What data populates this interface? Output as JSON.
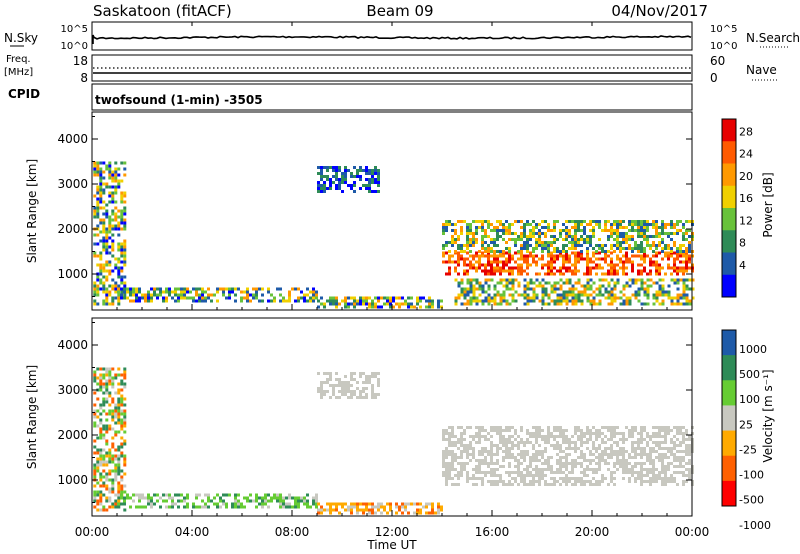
{
  "header": {
    "station": "Saskatoon (fitACF)",
    "beam": "Beam 09",
    "date": "04/Nov/2017"
  },
  "cpid": {
    "label": "CPID",
    "value": "twofsound (1-min) -3505"
  },
  "strip_nsky": {
    "left_label": "N.Sky",
    "left_ticks": [
      "10^5",
      "10^0"
    ],
    "right_ticks": [
      "10^5",
      "10^0"
    ],
    "right_label": "N.Search"
  },
  "strip_freq": {
    "left_label_1": "Freq.",
    "left_label_2": "[MHz]",
    "left_ticks": [
      "18",
      "8"
    ],
    "right_ticks": [
      "60",
      "0"
    ],
    "right_label": "Nave"
  },
  "colors": {
    "power": [
      "#0000ff",
      "#1e5aa8",
      "#2e8b57",
      "#68c23a",
      "#f0d000",
      "#ff9900",
      "#ff5a00",
      "#e60000"
    ],
    "velocity": [
      "#ff0000",
      "#ff6000",
      "#ffaa00",
      "#c8c8c0",
      "#66cc33",
      "#2e8b57",
      "#1e5aa8"
    ]
  },
  "chart_data": [
    {
      "type": "heatmap",
      "name": "Power",
      "ylabel": "Slant Range [km]",
      "yticks": [
        "4000",
        "3000",
        "2000",
        "1000"
      ],
      "ylim": [
        200,
        4600
      ],
      "xlim_hours": [
        0,
        24
      ],
      "xticks": [
        "00:00",
        "04:00",
        "08:00",
        "12:00",
        "16:00",
        "20:00",
        "00:00"
      ],
      "xlabel": "Time UT",
      "colorbar": {
        "label": "Power [dB]",
        "ticks": [
          "28",
          "24",
          "20",
          "16",
          "12",
          "8",
          "4"
        ],
        "range": [
          0,
          32
        ]
      },
      "regions": [
        {
          "t": [
            0.05,
            1.3
          ],
          "r": [
            300,
            3500
          ],
          "level": "mixed"
        },
        {
          "t": [
            1.0,
            9.0
          ],
          "r": [
            400,
            700
          ],
          "level": "mixed"
        },
        {
          "t": [
            9.0,
            14.0
          ],
          "r": [
            250,
            500
          ],
          "level": "mixed"
        },
        {
          "t": [
            9.0,
            11.5
          ],
          "r": [
            2800,
            3400
          ],
          "level": "low"
        },
        {
          "t": [
            14.0,
            24.0
          ],
          "r": [
            1000,
            1500
          ],
          "level": "high"
        },
        {
          "t": [
            14.0,
            24.0
          ],
          "r": [
            1500,
            2200
          ],
          "level": "mid"
        },
        {
          "t": [
            14.5,
            24.0
          ],
          "r": [
            300,
            900
          ],
          "level": "mid"
        }
      ]
    },
    {
      "type": "heatmap",
      "name": "Velocity",
      "ylabel": "Slant Range [km]",
      "yticks": [
        "4000",
        "3000",
        "2000",
        "1000"
      ],
      "ylim": [
        200,
        4600
      ],
      "xlim_hours": [
        0,
        24
      ],
      "xticks": [
        "00:00",
        "04:00",
        "08:00",
        "12:00",
        "16:00",
        "20:00",
        "00:00"
      ],
      "xlabel": "Time UT",
      "colorbar": {
        "label": "Velocity [m s⁻¹]",
        "ticks": [
          "1000",
          "500",
          "100",
          "25",
          "-25",
          "-100",
          "-500",
          "-1000"
        ]
      },
      "regions": [
        {
          "t": [
            0.05,
            1.3
          ],
          "r": [
            300,
            3500
          ],
          "level": "mixed"
        },
        {
          "t": [
            1.0,
            9.0
          ],
          "r": [
            400,
            700
          ],
          "level": "toward"
        },
        {
          "t": [
            9.0,
            14.0
          ],
          "r": [
            250,
            500
          ],
          "level": "away"
        },
        {
          "t": [
            14.0,
            24.0
          ],
          "r": [
            900,
            2200
          ],
          "level": "ground"
        },
        {
          "t": [
            9.0,
            11.5
          ],
          "r": [
            2800,
            3400
          ],
          "level": "ground"
        }
      ]
    }
  ]
}
